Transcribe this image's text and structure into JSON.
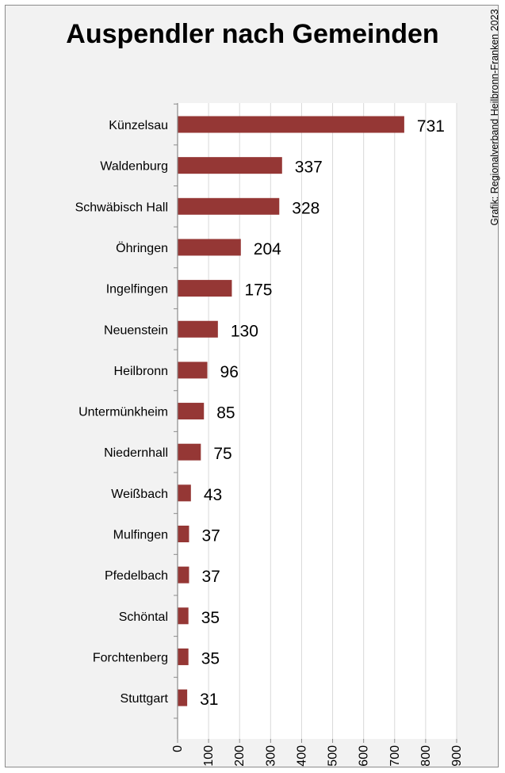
{
  "credit": "Grafik: Regionalverband Heilbronn-Franken 2023",
  "chart_data": {
    "type": "bar",
    "orientation": "horizontal",
    "title": "Auspendler nach Gemeinden",
    "categories": [
      "Künzelsau",
      "Waldenburg",
      "Schwäbisch Hall",
      "Öhringen",
      "Ingelfingen",
      "Neuenstein",
      "Heilbronn",
      "Untermünkheim",
      "Niedernhall",
      "Weißbach",
      "Mulfingen",
      "Pfedelbach",
      "Schöntal",
      "Forchtenberg",
      "Stuttgart"
    ],
    "values": [
      731,
      337,
      328,
      204,
      175,
      130,
      96,
      85,
      75,
      43,
      37,
      37,
      35,
      35,
      31
    ],
    "xlim": [
      0,
      900
    ],
    "ticks": [
      0,
      100,
      200,
      300,
      400,
      500,
      600,
      700,
      800,
      900
    ],
    "grid": true,
    "bar_color": "#953735"
  }
}
